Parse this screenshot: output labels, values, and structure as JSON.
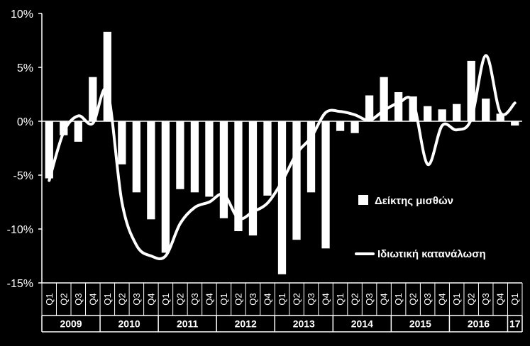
{
  "chart_data": {
    "type": "bar+line",
    "title": "",
    "xlabel": "",
    "ylabel": "",
    "ylim": [
      -15,
      10
    ],
    "yticks": [
      "10%",
      "5%",
      "0%",
      "-5%",
      "-10%",
      "-15%"
    ],
    "ytick_values": [
      10,
      5,
      0,
      -5,
      -10,
      -15
    ],
    "quarters": [
      "Q1",
      "Q2",
      "Q3",
      "Q4",
      "Q1",
      "Q2",
      "Q3",
      "Q4",
      "Q1",
      "Q2",
      "Q3",
      "Q4",
      "Q1",
      "Q2",
      "Q3",
      "Q4",
      "Q1",
      "Q2",
      "Q3",
      "Q4",
      "Q1",
      "Q2",
      "Q3",
      "Q4",
      "Q1",
      "Q2",
      "Q3",
      "Q4",
      "Q1",
      "Q2",
      "Q3",
      "Q4",
      "Q1"
    ],
    "years": [
      {
        "label": "2009",
        "quarters": 4
      },
      {
        "label": "2010",
        "quarters": 4
      },
      {
        "label": "2011",
        "quarters": 4
      },
      {
        "label": "2012",
        "quarters": 4
      },
      {
        "label": "2013",
        "quarters": 4
      },
      {
        "label": "2014",
        "quarters": 4
      },
      {
        "label": "2015",
        "quarters": 4
      },
      {
        "label": "2016",
        "quarters": 4
      },
      {
        "label": "17",
        "quarters": 1
      }
    ],
    "series": [
      {
        "name": "Δείκτης μισθών",
        "kind": "bar",
        "color": "#ffffff",
        "values": [
          -5.3,
          -1.3,
          -1.9,
          4.1,
          8.3,
          -4.0,
          -6.6,
          -9.1,
          -12.2,
          -6.3,
          -6.6,
          -7.0,
          -9.0,
          -10.2,
          -10.6,
          -6.9,
          -14.2,
          -11.0,
          -6.6,
          -11.8,
          -0.9,
          -1.1,
          2.4,
          4.1,
          2.7,
          2.3,
          1.4,
          1.1,
          1.6,
          5.6,
          2.1,
          0.7,
          -0.4
        ]
      },
      {
        "name": "Ιδιωτική κατανάλωση",
        "kind": "line",
        "color": "#ffffff",
        "values": [
          -5.5,
          -1.0,
          0.5,
          -0.2,
          2.8,
          -7.5,
          -11.5,
          -12.5,
          -12.5,
          -9.5,
          -8.0,
          -7.5,
          -6.8,
          -9.0,
          -8.4,
          -7.6,
          -5.6,
          -3.0,
          -1.5,
          0.8,
          0.9,
          0.6,
          0.1,
          1.0,
          1.7,
          1.8,
          -4.0,
          -0.4,
          -0.8,
          0.2,
          6.1,
          0.8,
          1.7
        ]
      }
    ],
    "legend_placement": "right",
    "grid": false
  }
}
